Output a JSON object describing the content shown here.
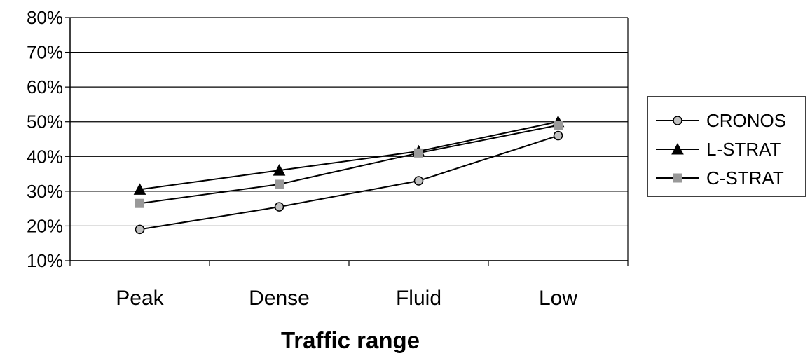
{
  "chart_data": {
    "type": "line",
    "title": "",
    "xlabel": "Traffic range",
    "ylabel": "",
    "categories": [
      "Peak",
      "Dense",
      "Fluid",
      "Low"
    ],
    "ylim": [
      0.1,
      0.8
    ],
    "yticks": [
      0.1,
      0.2,
      0.3,
      0.4,
      0.5,
      0.6,
      0.7,
      0.8
    ],
    "ytick_labels": [
      "10%",
      "20%",
      "30%",
      "40%",
      "50%",
      "60%",
      "70%",
      "80%"
    ],
    "grid": "horizontal",
    "legend": "right",
    "series": [
      {
        "name": "CRONOS",
        "marker": "circle",
        "marker_color": "#c0c0c0",
        "values": [
          0.19,
          0.255,
          0.33,
          0.46
        ]
      },
      {
        "name": "L-STRAT",
        "marker": "triangle",
        "marker_color": "#000000",
        "values": [
          0.305,
          0.36,
          0.415,
          0.5
        ]
      },
      {
        "name": "C-STRAT",
        "marker": "square",
        "marker_color": "#999999",
        "values": [
          0.265,
          0.32,
          0.41,
          0.49
        ]
      }
    ]
  }
}
